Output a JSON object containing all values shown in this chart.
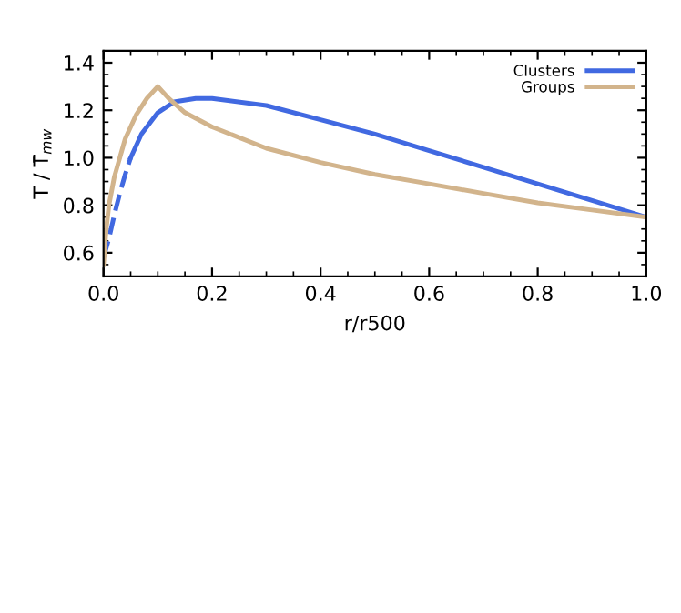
{
  "chart_data": {
    "type": "line",
    "xlabel": "r/r500",
    "ylabel": "T / T̄$_{mw}$",
    "xlim": [
      0,
      1
    ],
    "ylim": [
      0.5,
      1.45
    ],
    "xticks": [
      {
        "value": 0,
        "label": "0.0"
      },
      0.2,
      0.4,
      0.6,
      0.8,
      {
        "value": 1,
        "label": "1.0"
      }
    ],
    "yticks": [
      0.6,
      0.8,
      {
        "value": 1,
        "label": "1.0"
      },
      1.2,
      1.4
    ],
    "grid": false,
    "legend": "top right",
    "marker": "none",
    "series": [
      {
        "name": "Clusters",
        "color": "#4169e1",
        "line_style": "solid",
        "x": [
          0.05,
          0.07,
          0.1,
          0.13,
          0.17,
          0.2,
          0.3,
          0.4,
          0.5,
          0.6,
          0.7,
          0.8,
          0.9,
          1.0
        ],
        "values": [
          1.0,
          1.1,
          1.19,
          1.235,
          1.25,
          1.25,
          1.22,
          1.16,
          1.1,
          1.03,
          0.96,
          0.89,
          0.82,
          0.75
        ]
      },
      {
        "color": "#4169e1",
        "line_style": "dashed",
        "x": [
          0.0,
          0.01,
          0.02,
          0.03,
          0.04,
          0.05
        ],
        "values": [
          0.58,
          0.66,
          0.76,
          0.85,
          0.93,
          1.0
        ]
      },
      {
        "name": "Groups",
        "color": "#d2b48c",
        "line_style": "solid",
        "x": [
          0,
          0.005,
          0.01,
          0.02,
          0.04,
          0.06,
          0.08,
          0.1,
          0.12,
          0.15,
          0.2,
          0.3,
          0.4,
          0.5,
          0.6,
          0.7,
          0.8,
          0.9,
          1.0
        ],
        "values": [
          0.55,
          0.7,
          0.8,
          0.92,
          1.08,
          1.18,
          1.25,
          1.3,
          1.25,
          1.19,
          1.13,
          1.04,
          0.98,
          0.93,
          0.89,
          0.85,
          0.81,
          0.78,
          0.75
        ]
      }
    ]
  }
}
